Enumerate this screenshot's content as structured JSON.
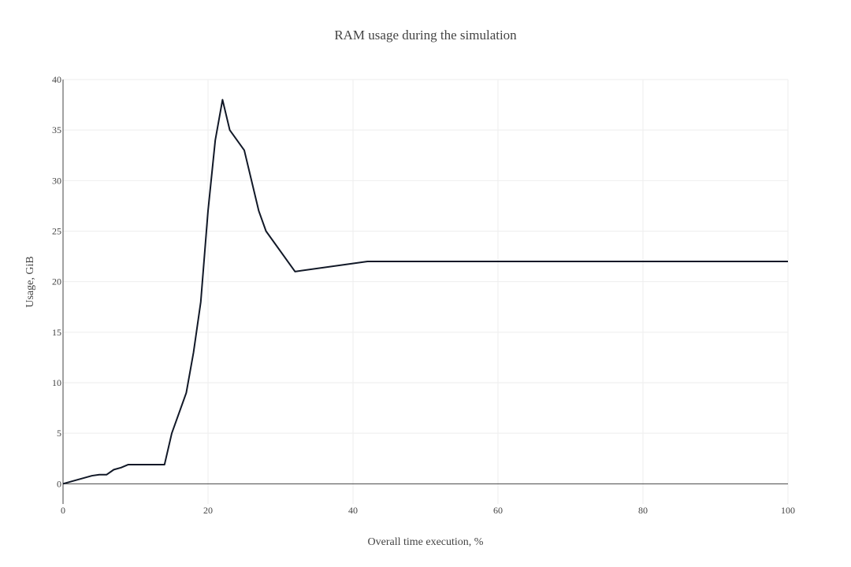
{
  "chart_data": {
    "type": "line",
    "title": "RAM usage during the simulation",
    "xlabel": "Overall time execution, %",
    "ylabel": "Usage, GiB",
    "xlim": [
      0,
      100
    ],
    "ylim": [
      -2,
      40
    ],
    "x_ticks": [
      "0",
      "20",
      "40",
      "60",
      "80",
      "100"
    ],
    "y_ticks": [
      "0",
      "5",
      "10",
      "15",
      "20",
      "25",
      "30",
      "35",
      "40"
    ],
    "grid": true,
    "legend": "none",
    "line_color": "#111827",
    "series": [
      {
        "x": [
          0,
          4,
          5,
          6,
          7,
          8,
          9,
          10,
          14,
          15,
          17,
          18,
          19,
          20,
          21,
          22,
          23,
          25,
          27,
          28,
          32,
          42,
          100
        ],
        "y": [
          0,
          0.8,
          0.9,
          0.9,
          1.4,
          1.6,
          1.9,
          1.9,
          1.9,
          5,
          9,
          13,
          18,
          27,
          34,
          38,
          35,
          33,
          27,
          25,
          21,
          22,
          22
        ]
      }
    ]
  }
}
